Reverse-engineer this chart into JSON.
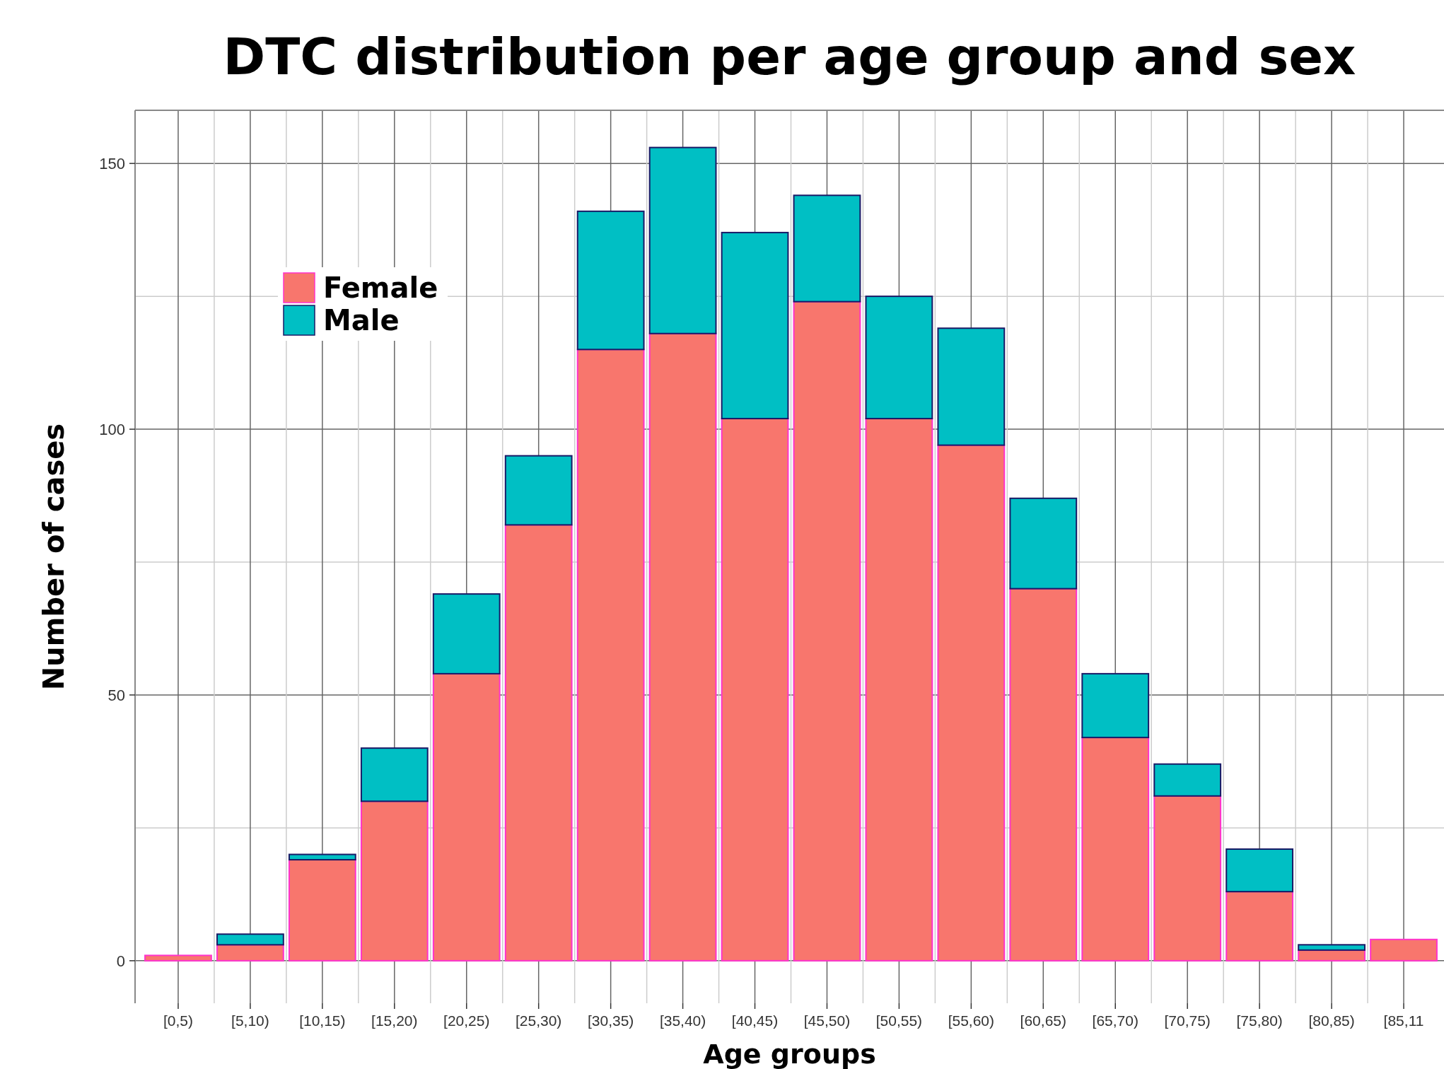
{
  "chart_data": {
    "type": "bar",
    "title": "DTC distribution per age group and sex",
    "xlabel": "Age groups",
    "ylabel": "Number of cases",
    "categories": [
      "[0,5)",
      "[5,10)",
      "[10,15)",
      "[15,20)",
      "[20,25)",
      "[25,30)",
      "[30,35)",
      "[35,40)",
      "[40,45)",
      "[45,50)",
      "[50,55)",
      "[55,60)",
      "[60,65)",
      "[65,70)",
      "[70,75)",
      "[75,80)",
      "[80,85)",
      "[85,11"
    ],
    "series": [
      {
        "name": "Female",
        "color": "#f8766d",
        "values": [
          1,
          3,
          19,
          30,
          54,
          82,
          115,
          118,
          102,
          124,
          102,
          97,
          70,
          42,
          31,
          13,
          2,
          4
        ]
      },
      {
        "name": "Male",
        "color": "#00bfc4",
        "values": [
          0,
          2,
          1,
          10,
          15,
          13,
          26,
          35,
          35,
          20,
          23,
          22,
          17,
          12,
          6,
          8,
          1,
          0
        ]
      }
    ],
    "stacked": true,
    "ylim": [
      -8,
      160
    ],
    "yticks": [
      0,
      50,
      100,
      150
    ],
    "grid": true,
    "legend": "top left"
  }
}
